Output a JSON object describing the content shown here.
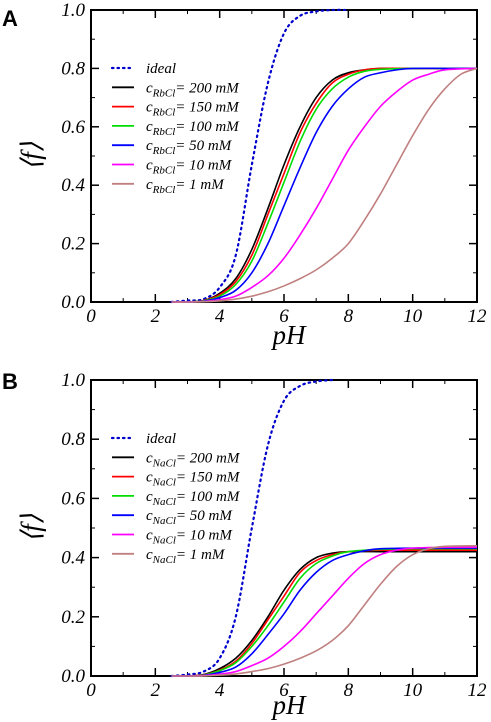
{
  "chart_data": [
    {
      "panel_label": "A",
      "type": "line",
      "xlabel": "pH",
      "ylabel": "⟨f⟩",
      "xlim": [
        0,
        12
      ],
      "ylim": [
        0,
        1.0
      ],
      "xticks": [
        0,
        2,
        4,
        6,
        8,
        10,
        12
      ],
      "yticks": [
        0.0,
        0.2,
        0.4,
        0.6,
        0.8,
        1.0
      ],
      "xtick_labels": [
        "0",
        "2",
        "4",
        "6",
        "8",
        "10",
        "12"
      ],
      "ytick_labels": [
        "0.0",
        "0.2",
        "0.4",
        "0.6",
        "0.8",
        "1.0"
      ],
      "grid": false,
      "legend_position": "upper-left",
      "series": [
        {
          "name": "ideal",
          "label_main": "ideal",
          "label_sub": "",
          "label_tail": "",
          "color": "#0000cc",
          "dash": "dotted",
          "x": [
            2.5,
            3,
            3.5,
            4,
            4.5,
            5,
            5.5,
            6,
            6.5,
            7,
            7.5,
            8
          ],
          "y": [
            0.0,
            0.005,
            0.01,
            0.05,
            0.16,
            0.47,
            0.75,
            0.92,
            0.98,
            0.995,
            1.0,
            1.0
          ]
        },
        {
          "name": "cRbCl= 200 mM",
          "label_main": "c",
          "label_sub": "RbCl",
          "label_tail": "= 200 mM",
          "color": "#000000",
          "dash": "solid",
          "x": [
            2.5,
            3,
            3.5,
            4,
            4.5,
            5,
            5.5,
            6,
            6.5,
            7,
            7.5,
            8,
            8.5,
            9,
            10,
            11,
            12
          ],
          "y": [
            0.0,
            0.0,
            0.005,
            0.03,
            0.08,
            0.18,
            0.32,
            0.47,
            0.6,
            0.7,
            0.76,
            0.785,
            0.795,
            0.8,
            0.8,
            0.8,
            0.8
          ]
        },
        {
          "name": "cRbCl= 150 mM",
          "label_main": "c",
          "label_sub": "RbCl",
          "label_tail": "= 150 mM",
          "color": "#ff0000",
          "dash": "solid",
          "x": [
            2.5,
            3,
            3.5,
            4,
            4.5,
            5,
            5.5,
            6,
            6.5,
            7,
            7.5,
            8,
            8.5,
            9,
            10,
            11,
            12
          ],
          "y": [
            0.0,
            0.0,
            0.005,
            0.025,
            0.07,
            0.16,
            0.3,
            0.44,
            0.58,
            0.68,
            0.75,
            0.78,
            0.795,
            0.8,
            0.8,
            0.8,
            0.8
          ]
        },
        {
          "name": "cRbCl= 100 mM",
          "label_main": "c",
          "label_sub": "RbCl",
          "label_tail": "= 100 mM",
          "color": "#00dd00",
          "dash": "solid",
          "x": [
            2.5,
            3,
            3.5,
            4,
            4.5,
            5,
            5.5,
            6,
            6.5,
            7,
            7.5,
            8,
            8.5,
            9,
            10,
            11,
            12
          ],
          "y": [
            0.0,
            0.0,
            0.004,
            0.02,
            0.06,
            0.14,
            0.27,
            0.41,
            0.55,
            0.66,
            0.73,
            0.77,
            0.79,
            0.797,
            0.8,
            0.8,
            0.8
          ]
        },
        {
          "name": "cRbCl= 50 mM",
          "label_main": "c",
          "label_sub": "RbCl",
          "label_tail": "=  50 mM",
          "color": "#0000ff",
          "dash": "solid",
          "x": [
            2.5,
            3,
            3.5,
            4,
            4.5,
            5,
            5.5,
            6,
            6.5,
            7,
            7.5,
            8,
            8.5,
            9,
            9.5,
            10,
            11,
            12
          ],
          "y": [
            0.0,
            0.0,
            0.003,
            0.015,
            0.04,
            0.1,
            0.2,
            0.33,
            0.46,
            0.58,
            0.67,
            0.73,
            0.77,
            0.785,
            0.795,
            0.8,
            0.8,
            0.8
          ]
        },
        {
          "name": "cRbCl= 10 mM",
          "label_main": "c",
          "label_sub": "RbCl",
          "label_tail": "=  10 mM",
          "color": "#ff00ff",
          "dash": "solid",
          "x": [
            2.5,
            3,
            3.5,
            4,
            4.5,
            5,
            5.5,
            6,
            6.5,
            7,
            7.5,
            8,
            8.5,
            9,
            9.5,
            10,
            10.5,
            11,
            12
          ],
          "y": [
            0.0,
            0.0,
            0.002,
            0.008,
            0.02,
            0.05,
            0.09,
            0.15,
            0.23,
            0.32,
            0.42,
            0.52,
            0.6,
            0.67,
            0.72,
            0.76,
            0.78,
            0.795,
            0.8
          ]
        },
        {
          "name": "cRbCl= 1 mM",
          "label_main": "c",
          "label_sub": "RbCl",
          "label_tail": "=   1 mM",
          "color": "#c08080",
          "dash": "solid",
          "x": [
            2.5,
            3,
            3.5,
            4,
            4.5,
            5,
            5.5,
            6,
            6.5,
            7,
            7.5,
            8,
            8.5,
            9,
            9.5,
            10,
            10.5,
            11,
            11.5,
            12
          ],
          "y": [
            0.0,
            0.0,
            0.001,
            0.004,
            0.01,
            0.02,
            0.035,
            0.055,
            0.08,
            0.11,
            0.15,
            0.2,
            0.28,
            0.37,
            0.47,
            0.57,
            0.66,
            0.73,
            0.78,
            0.8
          ]
        }
      ]
    },
    {
      "panel_label": "B",
      "type": "line",
      "xlabel": "pH",
      "ylabel": "⟨f⟩",
      "xlim": [
        0,
        12
      ],
      "ylim": [
        0,
        1.0
      ],
      "xticks": [
        0,
        2,
        4,
        6,
        8,
        10,
        12
      ],
      "yticks": [
        0.0,
        0.2,
        0.4,
        0.6,
        0.8,
        1.0
      ],
      "xtick_labels": [
        "0",
        "2",
        "4",
        "6",
        "8",
        "10",
        "12"
      ],
      "ytick_labels": [
        "0.0",
        "0.2",
        "0.4",
        "0.6",
        "0.8",
        "1.0"
      ],
      "grid": false,
      "legend_position": "upper-left",
      "series": [
        {
          "name": "ideal",
          "label_main": "ideal",
          "label_sub": "",
          "label_tail": "",
          "color": "#0000cc",
          "dash": "dotted",
          "x": [
            2.5,
            3,
            3.5,
            4,
            4.5,
            5,
            5.5,
            6,
            6.5,
            7,
            7.5
          ],
          "y": [
            0.0,
            0.005,
            0.015,
            0.06,
            0.2,
            0.5,
            0.78,
            0.93,
            0.98,
            0.995,
            1.0
          ]
        },
        {
          "name": "cNaCl= 200 mM",
          "label_main": "c",
          "label_sub": "NaCl",
          "label_tail": "= 200 mM",
          "color": "#000000",
          "dash": "solid",
          "x": [
            2.5,
            3,
            3.5,
            4,
            4.5,
            5,
            5.5,
            6,
            6.5,
            7,
            7.5,
            8,
            9,
            10,
            11,
            12
          ],
          "y": [
            0.0,
            0.0,
            0.005,
            0.025,
            0.06,
            0.12,
            0.2,
            0.29,
            0.36,
            0.4,
            0.415,
            0.42,
            0.42,
            0.42,
            0.42,
            0.42
          ]
        },
        {
          "name": "cNaCl= 150 mM",
          "label_main": "c",
          "label_sub": "NaCl",
          "label_tail": "= 150 mM",
          "color": "#ff0000",
          "dash": "solid",
          "x": [
            2.5,
            3,
            3.5,
            4,
            4.5,
            5,
            5.5,
            6,
            6.5,
            7,
            7.5,
            8,
            9,
            10,
            11,
            12
          ],
          "y": [
            0.0,
            0.0,
            0.004,
            0.02,
            0.05,
            0.11,
            0.19,
            0.27,
            0.35,
            0.39,
            0.41,
            0.42,
            0.425,
            0.425,
            0.425,
            0.425
          ]
        },
        {
          "name": "cNaCl= 100 mM",
          "label_main": "c",
          "label_sub": "NaCl",
          "label_tail": "= 100 mM",
          "color": "#00dd00",
          "dash": "solid",
          "x": [
            2.5,
            3,
            3.5,
            4,
            4.5,
            5,
            5.5,
            6,
            6.5,
            7,
            7.5,
            8,
            9,
            10,
            11,
            12
          ],
          "y": [
            0.0,
            0.0,
            0.003,
            0.018,
            0.045,
            0.1,
            0.17,
            0.25,
            0.33,
            0.38,
            0.405,
            0.42,
            0.428,
            0.43,
            0.43,
            0.43
          ]
        },
        {
          "name": "cNaCl= 50 mM",
          "label_main": "c",
          "label_sub": "NaCl",
          "label_tail": "=  50 mM",
          "color": "#0000ff",
          "dash": "solid",
          "x": [
            2.5,
            3,
            3.5,
            4,
            4.5,
            5,
            5.5,
            6,
            6.5,
            7,
            7.5,
            8,
            8.5,
            9,
            10,
            11,
            12
          ],
          "y": [
            0.0,
            0.0,
            0.002,
            0.012,
            0.03,
            0.075,
            0.14,
            0.21,
            0.29,
            0.35,
            0.39,
            0.41,
            0.423,
            0.43,
            0.432,
            0.432,
            0.432
          ]
        },
        {
          "name": "cNaCl= 10 mM",
          "label_main": "c",
          "label_sub": "NaCl",
          "label_tail": "=  10 mM",
          "color": "#ff00ff",
          "dash": "solid",
          "x": [
            2.5,
            3,
            3.5,
            4,
            4.5,
            5,
            5.5,
            6,
            6.5,
            7,
            7.5,
            8,
            8.5,
            9,
            9.5,
            10,
            11,
            12
          ],
          "y": [
            0.0,
            0.0,
            0.001,
            0.006,
            0.015,
            0.035,
            0.06,
            0.1,
            0.15,
            0.21,
            0.27,
            0.33,
            0.38,
            0.41,
            0.425,
            0.432,
            0.435,
            0.435
          ]
        },
        {
          "name": "cNaCl= 1 mM",
          "label_main": "c",
          "label_sub": "NaCl",
          "label_tail": "=   1 mM",
          "color": "#c08080",
          "dash": "solid",
          "x": [
            2.5,
            3,
            3.5,
            4,
            4.5,
            5,
            5.5,
            6,
            6.5,
            7,
            7.5,
            8,
            8.5,
            9,
            9.5,
            10,
            10.5,
            11,
            12
          ],
          "y": [
            0.0,
            0.0,
            0.0,
            0.003,
            0.007,
            0.015,
            0.025,
            0.04,
            0.06,
            0.085,
            0.12,
            0.17,
            0.24,
            0.31,
            0.37,
            0.41,
            0.43,
            0.438,
            0.44
          ]
        }
      ]
    }
  ]
}
